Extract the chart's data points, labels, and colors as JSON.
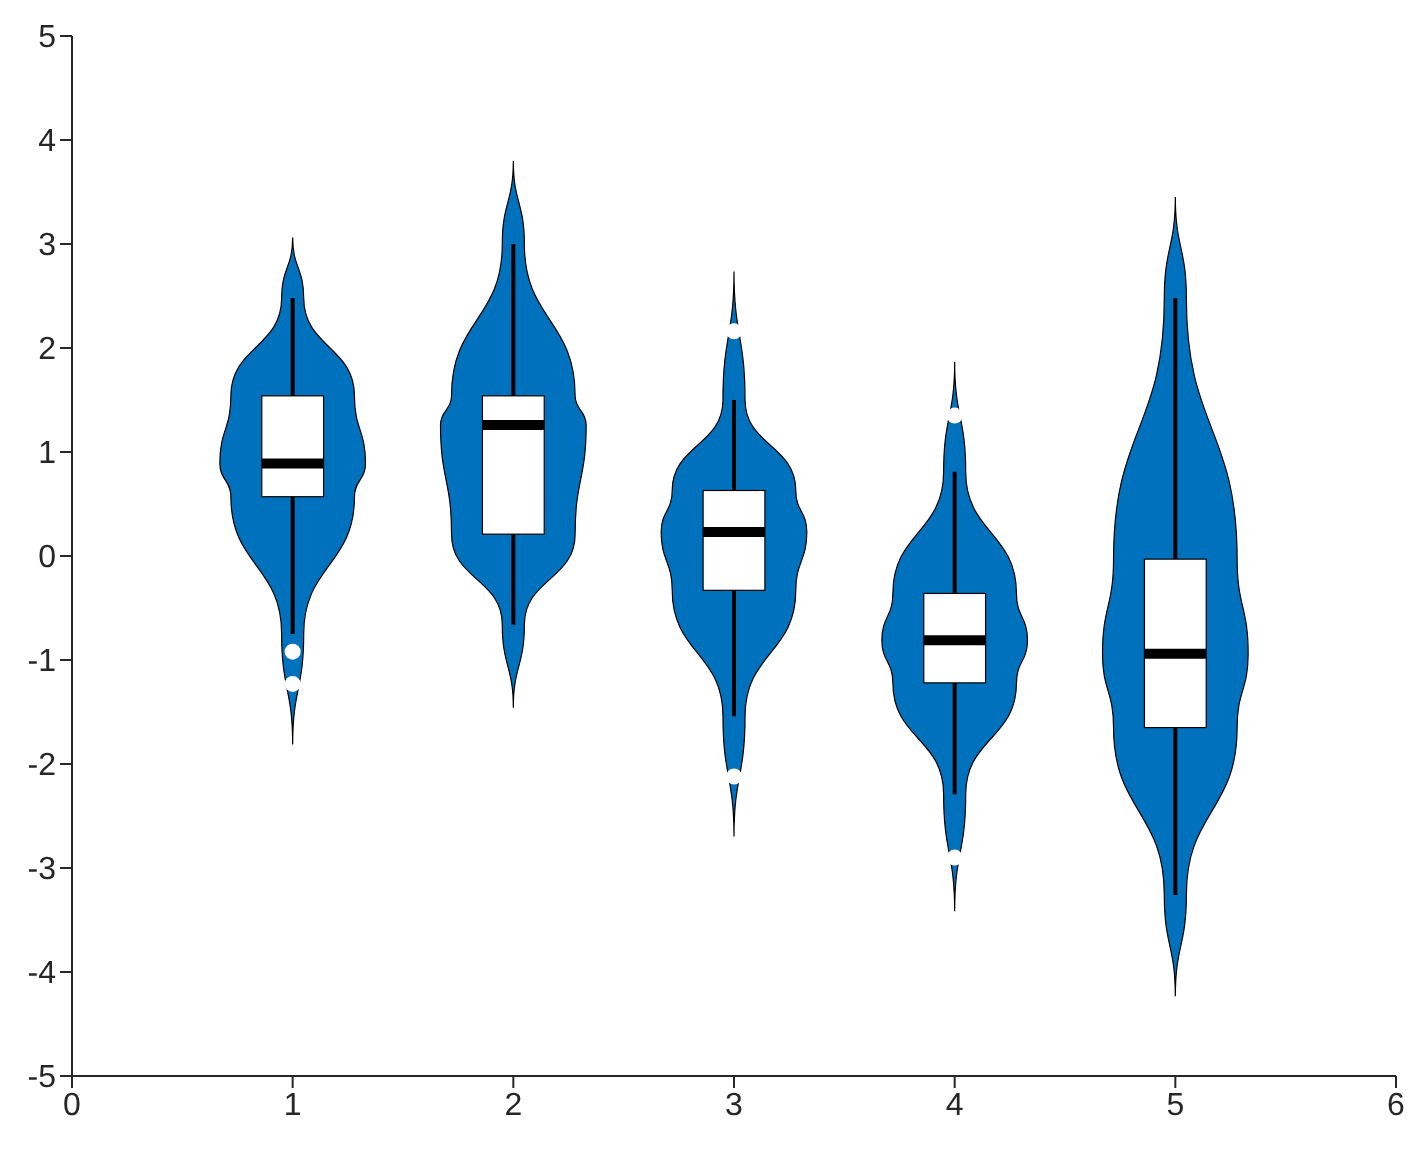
{
  "chart_data": {
    "type": "box",
    "x": [
      1,
      2,
      3,
      4,
      5
    ],
    "xlim": [
      0,
      6
    ],
    "xticks": [
      0,
      1,
      2,
      3,
      4,
      5,
      6
    ],
    "ylim": [
      -5,
      5
    ],
    "yticks": [
      -5,
      -4,
      -3,
      -2,
      -1,
      0,
      1,
      2,
      3,
      4,
      5
    ],
    "grid": false,
    "series": [
      {
        "color": "#ffffff",
        "boxes": [
          {
            "low": -0.75,
            "q1": 0.57,
            "median": 0.89,
            "q3": 1.54,
            "high": 2.48,
            "outliers": [
              -0.92,
              -1.23
            ]
          },
          {
            "low": -0.66,
            "q1": 0.21,
            "median": 1.26,
            "q3": 1.54,
            "high": 3.0
          },
          {
            "low": -1.54,
            "q1": -0.33,
            "median": 0.23,
            "q3": 0.63,
            "high": 1.5,
            "outliers": [
              2.16,
              -2.12
            ]
          },
          {
            "low": -2.29,
            "q1": -1.22,
            "median": -0.81,
            "q3": -0.36,
            "high": 0.81,
            "outliers": [
              1.35,
              -2.9
            ]
          },
          {
            "low": -3.26,
            "q1": -1.65,
            "median": -0.94,
            "q3": -0.03,
            "high": 2.48
          }
        ]
      }
    ]
  }
}
